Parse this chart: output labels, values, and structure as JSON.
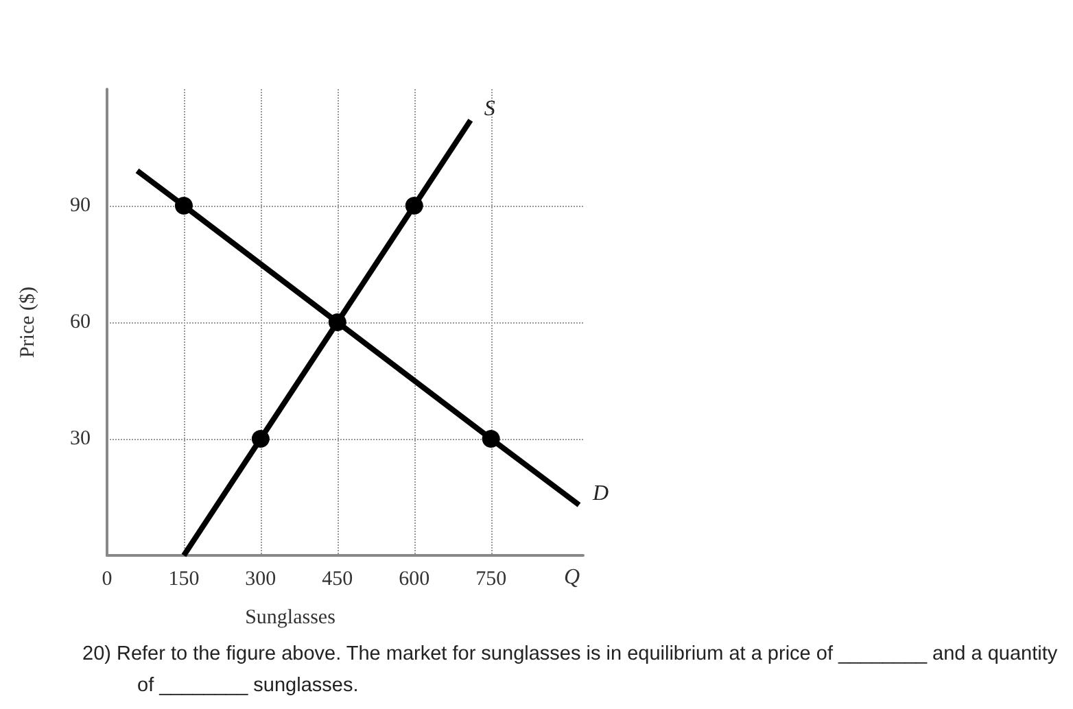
{
  "chart_data": {
    "type": "line",
    "xlabel": "Sunglasses",
    "ylabel": "Price ($)",
    "xlim": [
      0,
      930
    ],
    "ylim": [
      0,
      120
    ],
    "xticks": [
      0,
      150,
      300,
      450,
      600,
      750
    ],
    "yticks": [
      30,
      60,
      90
    ],
    "grid": true,
    "series": [
      {
        "name": "S",
        "color": "#000000",
        "x": [
          150,
          300,
          450,
          600,
          710
        ],
        "values": [
          0,
          30,
          60,
          90,
          112
        ],
        "marker": "none"
      },
      {
        "name": "D",
        "color": "#000000",
        "x": [
          59,
          150,
          450,
          750,
          922
        ],
        "values": [
          99,
          90,
          60,
          30,
          13
        ],
        "marker": "none"
      },
      {
        "type": "scatter",
        "color": "#000000",
        "x": [
          150,
          300,
          450,
          600,
          750
        ],
        "values": [
          90,
          30,
          60,
          90,
          30
        ],
        "marker": "circle"
      }
    ],
    "annotations": [
      "Q",
      "20) Refer to the figure above. The market for sunglasses is in equilibrium at a price of ________ and a quantity of ________ sunglasses."
    ]
  }
}
